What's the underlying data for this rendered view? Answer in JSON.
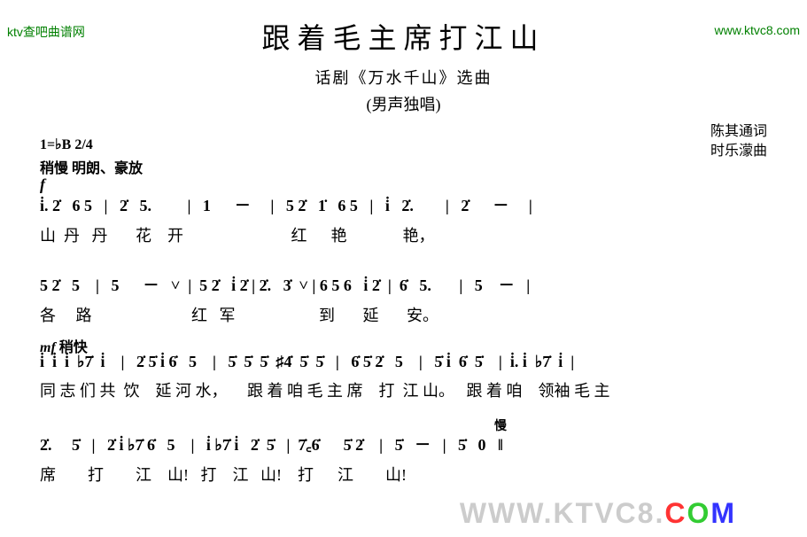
{
  "watermarks": {
    "top_left": "ktv查吧曲谱网",
    "top_right": "www.ktvc8.com",
    "bottom_prefix": "WWW.KTVC8",
    "bottom_dot": ".",
    "bottom_c": "C",
    "bottom_o": "O",
    "bottom_m": "M"
  },
  "header": {
    "title": "跟着毛主席打江山",
    "subtitle1": "话剧《万水千山》选曲",
    "subtitle2": "(男声独唱)",
    "lyricist": "陈其通词",
    "composer": "时乐濛曲"
  },
  "meta": {
    "key_time": "1=♭B  2/4",
    "tempo1": "稍慢   明朗、豪放",
    "dynamic1": "f",
    "tempo2": "mf 稍快",
    "slow": "慢"
  },
  "lines": [
    {
      "notes": "i̇. 2̇   6 5   |   2̇   5.         |   1      －     |   5 2̇   1̇   6 5   |   i̇   2̇.        |   2̇      －     |",
      "lyrics": "山  丹   丹       花    开                           红      艳              艳，"
    },
    {
      "notes": "5 2̇   5    |   5      －   ˅  |  5 2̇   i̇ 2̇ | 2̇.   3̇  ˅ | 6 5 6   i̇ 2̇  |  6̇   5.       |   5    －   |",
      "lyrics": "各     路                         红   军                     到       延       安。"
    },
    {
      "notes": "i̇  i̇  i̇  ♭7̇  i̇    |   2̇ 5̇ i̇ 6̇   5    |   5̇  5̇  5̇  ♯4̇  5̇  5̇   |   6̇ 5̇ 2̇   5    |   5̇ i̇  6̇  5̇    |  i̇. i̇  ♭7̇  i̇  |",
      "lyrics": "同 志 们 共  饮    延 河 水，     跟 着 咱 毛 主 席    打  江 山。   跟 着 咱    领袖 毛 主"
    },
    {
      "notes": "2̇.     5̇   |   2̇ i̇ ♭7̇ 6̇   5    |   i̇ ♭7̇ i̇   2̇  5̇   |  7̇꜀6̇      5̇ 2̇    |   5̇   －   |   5̇   0   ‖",
      "lyrics": "席        打        江    山!   打    江   山!    打      江        山!"
    }
  ],
  "colors": {
    "watermark_green": "#008000",
    "background": "#ffffff",
    "text": "#000000",
    "wm_gray": "#cccccc",
    "wm_red": "#ff3333",
    "wm_green": "#33cc33",
    "wm_blue": "#3333ff"
  }
}
